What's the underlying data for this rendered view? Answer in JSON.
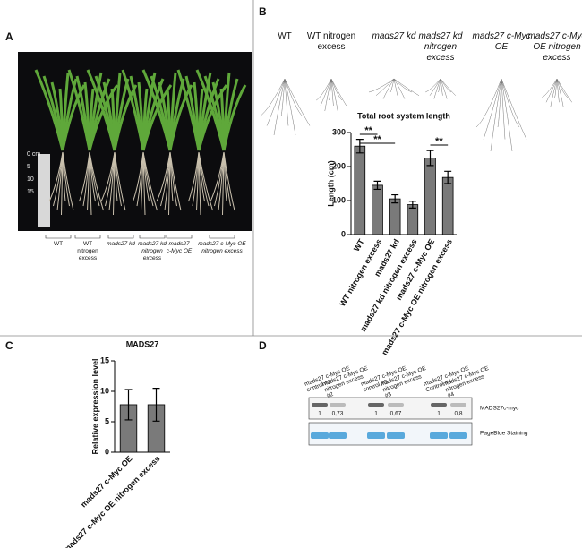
{
  "panels": {
    "a": "A",
    "b": "B",
    "c": "C",
    "d": "D"
  },
  "photo_labels": [
    "WT",
    "WT nitrogen excess",
    "mads27 kd",
    "mads27 kd nitrogen excess",
    "mads27 c-Myc OE",
    "mads27 c-Myc OE nitrogen excess"
  ],
  "ruler_labels": [
    "0 cm",
    "5",
    "10",
    "15"
  ],
  "root_headers": [
    "WT",
    "WT nitrogen excess",
    "mads27 kd",
    "mads27 kd nitrogen excess",
    "mads27 c-Myc OE",
    "mads27 c-Myc OE nitrogen excess"
  ],
  "chart_data": [
    {
      "type": "bar",
      "title": "Total root system length",
      "y_label": "Length (cm)",
      "categories": [
        "WT",
        "WT nitrogen excess",
        "mads27 kd",
        "mads27 kd nitrogen excess",
        "mads27 c-Myc OE",
        "mads27 c-Myc OE nitrogen excess"
      ],
      "values": [
        260,
        145,
        105,
        88,
        225,
        168
      ],
      "errors": [
        20,
        12,
        12,
        10,
        22,
        18
      ],
      "color": "#7a7a7a",
      "ylim": [
        0,
        300
      ],
      "yticks": [
        0,
        100,
        200,
        300
      ],
      "annotations": [
        "**",
        "**",
        "**"
      ]
    },
    {
      "type": "bar",
      "title": "MADS27",
      "y_label": "Relative expression level",
      "categories": [
        "mads27 c-Myc OE",
        "mads27 c-Myc OE nitrogen excess"
      ],
      "values": [
        7.8,
        7.8
      ],
      "errors": [
        2.5,
        2.7
      ],
      "color": "#7a7a7a",
      "ylim": [
        0,
        15
      ],
      "yticks": [
        0,
        5,
        10,
        15
      ]
    }
  ],
  "blot": {
    "lanes": [
      "mads27 c-Myc OE control #2",
      "mads27 c-Myc OE nitrogen excess #2",
      "mads27 c-Myc OE control #3",
      "mads27 c-Myc OE nitrogen excess #3",
      "mads27 c-Myc OE Control #4",
      "mads27 c-Myc OE nitrogen excess #4"
    ],
    "quantification": [
      "1",
      "0,73",
      "1",
      "0,67",
      "1",
      "0,8"
    ],
    "rows": [
      "MADS27c-myc",
      "PageBlue Staining"
    ]
  }
}
